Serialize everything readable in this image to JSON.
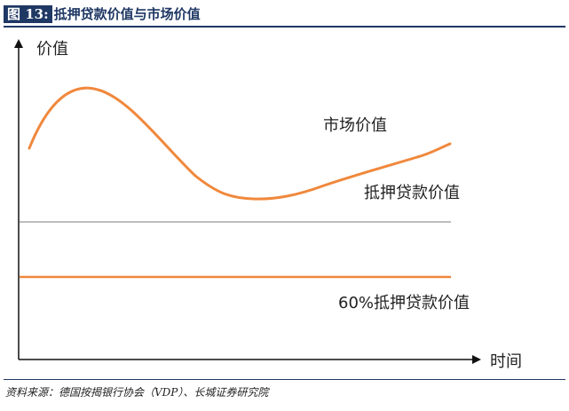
{
  "header": {
    "figure_number": "图 13:",
    "title": "抵押贷款价值与市场价值"
  },
  "diagram": {
    "y_axis_label": "价值",
    "x_axis_label": "时间",
    "curves": {
      "market_value": {
        "label": "市场价值",
        "color": "#f0883c"
      },
      "mortgage_value": {
        "label": "抵押贷款价值",
        "color": "#bdbdbd"
      },
      "sixty_pct_value": {
        "label": "60%抵押贷款价值",
        "color": "#f0883c"
      }
    }
  },
  "footer": {
    "source": "资料来源：德国按揭银行协会（VDP）、长城证券研究院"
  }
}
